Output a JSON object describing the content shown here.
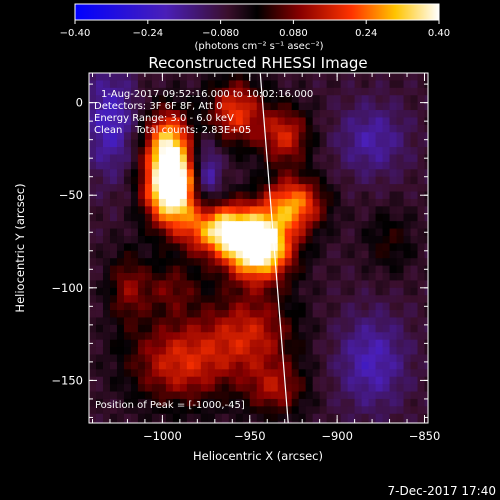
{
  "chart_data": {
    "type": "heatmap",
    "title": "Reconstructed RHESSI Image",
    "xlabel": "Heliocentric X (arcsec)",
    "ylabel": "Heliocentric Y (arcsec)",
    "xlim": [
      -1042,
      -848
    ],
    "ylim": [
      -173,
      16
    ],
    "xticks": [
      -1000,
      -950,
      -900,
      -850
    ],
    "xtick_labels": [
      "−1000",
      "−950",
      "−900",
      "−850"
    ],
    "yticks": [
      0,
      -50,
      -100,
      -150
    ],
    "ytick_labels": [
      "0",
      "−50",
      "−100",
      "−150"
    ],
    "colorbar": {
      "range": [
        -0.4,
        0.4
      ],
      "ticks": [
        -0.4,
        -0.24,
        -0.08,
        0.08,
        0.24,
        0.4
      ],
      "tick_labels": [
        "−0.40",
        "−0.24",
        "−0.080",
        "0.080",
        "0.24",
        "0.40"
      ],
      "unit_label": "(photons cm⁻² s⁻¹ asec⁻²)"
    },
    "annotations": [
      "1-Aug-2017 09:52:16.000 to 10:02:16.000",
      "Detectors: 3F 6F 8F, Att 0",
      "Energy Range: 3.0 - 6.0 keV",
      "Clean    Total counts: 2.83E+05"
    ],
    "peak_label": "Position of Peak = [-1000,-45]",
    "limb_line": [
      {
        "x": -944,
        "y": 16
      },
      {
        "x": -928,
        "y": -173
      }
    ],
    "sources": [
      {
        "x": -995,
        "y": -45,
        "amp": 0.6,
        "sx": 10,
        "sy": 14
      },
      {
        "x": -997,
        "y": -20,
        "amp": 0.3,
        "sx": 9,
        "sy": 12
      },
      {
        "x": -945,
        "y": -78,
        "amp": 0.55,
        "sx": 13,
        "sy": 12
      },
      {
        "x": -968,
        "y": -68,
        "amp": 0.38,
        "sx": 14,
        "sy": 10
      },
      {
        "x": -925,
        "y": -55,
        "amp": 0.32,
        "sx": 12,
        "sy": 10
      },
      {
        "x": -958,
        "y": -5,
        "amp": 0.25,
        "sx": 11,
        "sy": 12
      },
      {
        "x": -930,
        "y": -18,
        "amp": 0.22,
        "sx": 10,
        "sy": 11
      },
      {
        "x": -990,
        "y": -140,
        "amp": 0.22,
        "sx": 20,
        "sy": 16
      },
      {
        "x": -950,
        "y": -125,
        "amp": 0.2,
        "sx": 18,
        "sy": 16
      },
      {
        "x": -935,
        "y": -155,
        "amp": 0.16,
        "sx": 12,
        "sy": 10
      },
      {
        "x": -1020,
        "y": -100,
        "amp": 0.14,
        "sx": 8,
        "sy": 14
      },
      {
        "x": -995,
        "y": -100,
        "amp": 0.12,
        "sx": 12,
        "sy": 10
      },
      {
        "x": -870,
        "y": -75,
        "amp": 0.08,
        "sx": 10,
        "sy": 12
      },
      {
        "x": -975,
        "y": -40,
        "amp": -0.18,
        "sx": 6,
        "sy": 14
      },
      {
        "x": -1030,
        "y": -10,
        "amp": -0.16,
        "sx": 10,
        "sy": 20
      },
      {
        "x": -880,
        "y": -20,
        "amp": -0.12,
        "sx": 14,
        "sy": 14
      },
      {
        "x": -880,
        "y": -140,
        "amp": -0.14,
        "sx": 14,
        "sy": 18
      }
    ]
  },
  "footer": {
    "date": "7-Dec-2017 17:40"
  }
}
